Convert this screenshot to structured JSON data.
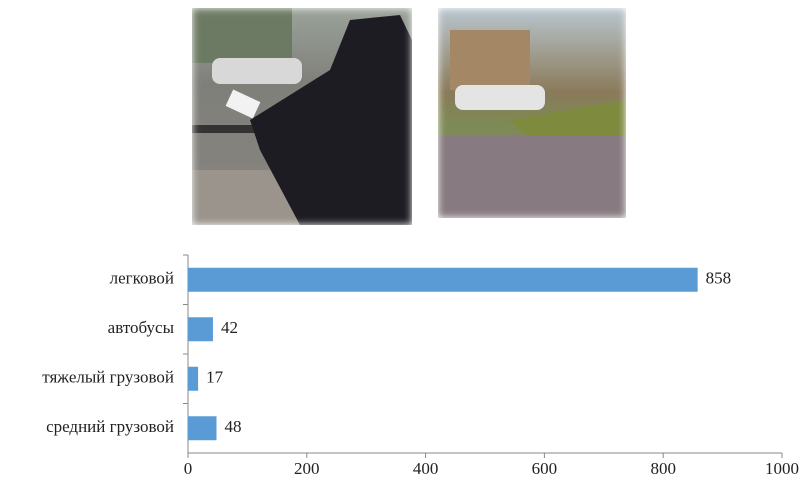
{
  "chart_data": {
    "type": "bar",
    "orientation": "horizontal",
    "categories": [
      "легковой",
      "автобусы",
      "тяжелый грузовой",
      "средний грузовой"
    ],
    "values": [
      858,
      42,
      17,
      48
    ],
    "color": "#5b9bd5",
    "xlim": [
      0,
      1000
    ],
    "xticks": [
      0,
      200,
      400,
      600,
      800,
      1000
    ],
    "grid": false
  }
}
